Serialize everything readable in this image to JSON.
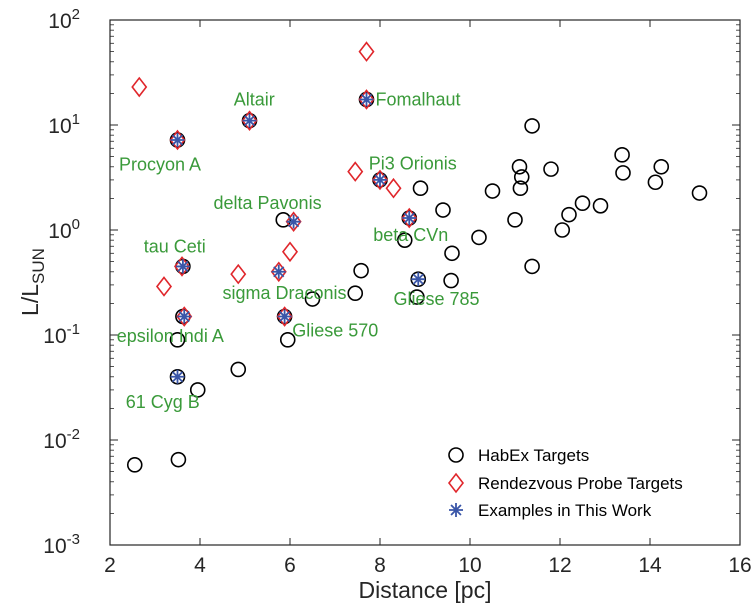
{
  "chart_data": {
    "type": "scatter",
    "xlabel": "Distance [pc]",
    "ylabel_main": "L/L",
    "ylabel_sub": "SUN",
    "xlim": [
      2,
      16
    ],
    "ylim": [
      0.001,
      100
    ],
    "y_scale": "log",
    "x_ticks": [
      2,
      4,
      6,
      8,
      10,
      12,
      14,
      16
    ],
    "y_ticks": [
      {
        "value": 0.001,
        "base": "10",
        "exp": "-3"
      },
      {
        "value": 0.01,
        "base": "10",
        "exp": "-2"
      },
      {
        "value": 0.1,
        "base": "10",
        "exp": "-1"
      },
      {
        "value": 1,
        "base": "10",
        "exp": "0"
      },
      {
        "value": 10,
        "base": "10",
        "exp": "1"
      },
      {
        "value": 100,
        "base": "10",
        "exp": "2"
      }
    ],
    "grid": false,
    "legend_position": "bottom-right",
    "colors": {
      "habex": "#000000",
      "rendezvous": "#e0262b",
      "examples": "#3a56a8",
      "annotation": "#3a9a3a"
    },
    "series": [
      {
        "name": "HabEx Targets",
        "marker": "circle",
        "points": [
          [
            2.55,
            0.0058
          ],
          [
            3.52,
            0.0065
          ],
          [
            3.5,
            0.04
          ],
          [
            3.95,
            0.03
          ],
          [
            4.85,
            0.047
          ],
          [
            3.5,
            0.09
          ],
          [
            3.62,
            0.15
          ],
          [
            3.62,
            0.45
          ],
          [
            5.1,
            11.0
          ],
          [
            3.5,
            7.2
          ],
          [
            5.85,
            1.25
          ],
          [
            5.95,
            0.09
          ],
          [
            5.88,
            0.15
          ],
          [
            6.5,
            0.22
          ],
          [
            7.45,
            0.25
          ],
          [
            7.58,
            0.41
          ],
          [
            7.7,
            17.5
          ],
          [
            8.0,
            3.0
          ],
          [
            8.55,
            0.8
          ],
          [
            8.65,
            1.3
          ],
          [
            8.82,
            0.23
          ],
          [
            8.85,
            0.34
          ],
          [
            8.9,
            2.5
          ],
          [
            9.4,
            1.55
          ],
          [
            9.6,
            0.6
          ],
          [
            9.58,
            0.33
          ],
          [
            10.2,
            0.85
          ],
          [
            10.5,
            2.35
          ],
          [
            11.0,
            1.25
          ],
          [
            11.1,
            4.0
          ],
          [
            11.15,
            3.2
          ],
          [
            11.12,
            2.5
          ],
          [
            11.38,
            9.8
          ],
          [
            11.38,
            0.45
          ],
          [
            11.8,
            3.8
          ],
          [
            12.05,
            1.0
          ],
          [
            12.2,
            1.4
          ],
          [
            12.5,
            1.8
          ],
          [
            12.9,
            1.7
          ],
          [
            13.38,
            5.2
          ],
          [
            13.4,
            3.5
          ],
          [
            14.12,
            2.85
          ],
          [
            14.25,
            4.0
          ],
          [
            15.1,
            2.25
          ]
        ]
      },
      {
        "name": "Rendezvous Probe Targets",
        "marker": "diamond",
        "points": [
          [
            2.65,
            23
          ],
          [
            3.5,
            7.2
          ],
          [
            5.1,
            11.0
          ],
          [
            3.6,
            0.45
          ],
          [
            3.2,
            0.29
          ],
          [
            3.65,
            0.15
          ],
          [
            4.85,
            0.38
          ],
          [
            5.75,
            0.4
          ],
          [
            6.0,
            0.62
          ],
          [
            6.08,
            1.2
          ],
          [
            7.45,
            3.6
          ],
          [
            7.7,
            50
          ],
          [
            7.7,
            17.5
          ],
          [
            8.3,
            2.5
          ],
          [
            8.65,
            1.3
          ],
          [
            5.88,
            0.15
          ],
          [
            8.0,
            3.0
          ]
        ]
      },
      {
        "name": "Examples in This Work",
        "marker": "asterisk",
        "points": [
          [
            3.5,
            7.2
          ],
          [
            5.1,
            11.0
          ],
          [
            3.62,
            0.45
          ],
          [
            3.65,
            0.15
          ],
          [
            3.5,
            0.04
          ],
          [
            5.75,
            0.4
          ],
          [
            5.88,
            0.15
          ],
          [
            6.08,
            1.2
          ],
          [
            7.7,
            17.5
          ],
          [
            8.0,
            3.0
          ],
          [
            8.65,
            1.3
          ],
          [
            8.85,
            0.34
          ]
        ]
      }
    ],
    "annotations": [
      {
        "text": "Fomalhaut",
        "x": 7.9,
        "y": 17.5
      },
      {
        "text": "Altair",
        "x": 4.75,
        "y": 17.5
      },
      {
        "text": "Procyon A",
        "x": 2.2,
        "y": 4.2
      },
      {
        "text": "Pi3 Orionis",
        "x": 7.75,
        "y": 4.3
      },
      {
        "text": "delta Pavonis",
        "x": 4.3,
        "y": 1.8
      },
      {
        "text": "tau Ceti",
        "x": 2.75,
        "y": 0.7
      },
      {
        "text": "beta CVn",
        "x": 7.85,
        "y": 0.9
      },
      {
        "text": "sigma Draconis",
        "x": 4.5,
        "y": 0.25
      },
      {
        "text": "Gliese 785",
        "x": 8.3,
        "y": 0.22
      },
      {
        "text": "epsilon Indi A",
        "x": 2.15,
        "y": 0.098
      },
      {
        "text": "Gliese 570",
        "x": 6.05,
        "y": 0.11
      },
      {
        "text": "61 Cyg B",
        "x": 2.35,
        "y": 0.023
      }
    ]
  }
}
